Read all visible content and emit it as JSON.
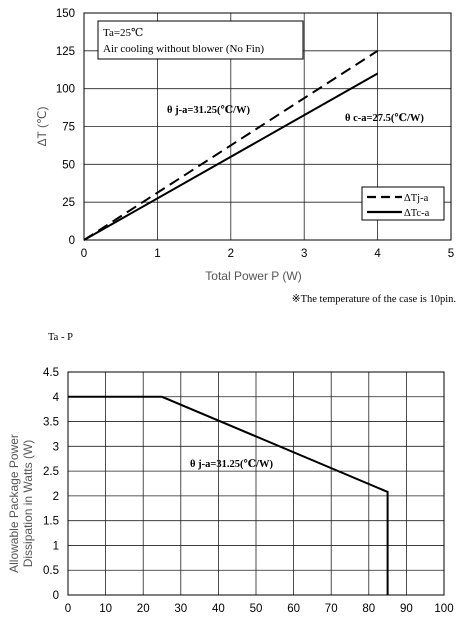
{
  "chart_data": [
    {
      "type": "line",
      "xlabel": "Total Power P (W)",
      "ylabel": "ΔT (℃)",
      "xlim": [
        0,
        5
      ],
      "ylim": [
        0,
        150
      ],
      "xticks": [
        0,
        1,
        2,
        3,
        4,
        5
      ],
      "yticks": [
        0,
        25,
        50,
        75,
        100,
        125,
        150
      ],
      "grid": true,
      "condition_lines": [
        "Ta=25℃",
        "Air cooling without blower (No Fin)"
      ],
      "annotations": [
        {
          "text": "θ j-a=31.25(℃/W)"
        },
        {
          "text": "θ c-a=27.5(℃/W)"
        }
      ],
      "legend_position": "bottom-right",
      "series": [
        {
          "name": "ΔTj-a",
          "style": "dashed",
          "x": [
            0,
            4
          ],
          "y": [
            0,
            125
          ]
        },
        {
          "name": "ΔTc-a",
          "style": "solid",
          "x": [
            0,
            4
          ],
          "y": [
            0,
            110
          ]
        }
      ]
    },
    {
      "type": "line",
      "title": "Ta - P",
      "xlabel": "",
      "ylabel": "Allowable Package Power Dissipation in Watts (W)",
      "ylabel_lines": [
        "Allowable Package Power",
        "Dissipation in Watts (W)"
      ],
      "xlim": [
        0,
        100
      ],
      "ylim": [
        0,
        4.5
      ],
      "xticks": [
        0,
        10,
        20,
        30,
        40,
        50,
        60,
        70,
        80,
        90,
        100
      ],
      "yticks": [
        0,
        0.5,
        1,
        1.5,
        2,
        2.5,
        3,
        3.5,
        4,
        4.5
      ],
      "grid": true,
      "annotations": [
        {
          "text": "θ j-a=31.25(℃/W)"
        }
      ],
      "series": [
        {
          "style": "solid",
          "x": [
            0,
            25,
            85,
            85
          ],
          "y": [
            4,
            4,
            2.08,
            0
          ]
        }
      ]
    }
  ],
  "footnote": "※The temperature of the case is 10pin."
}
